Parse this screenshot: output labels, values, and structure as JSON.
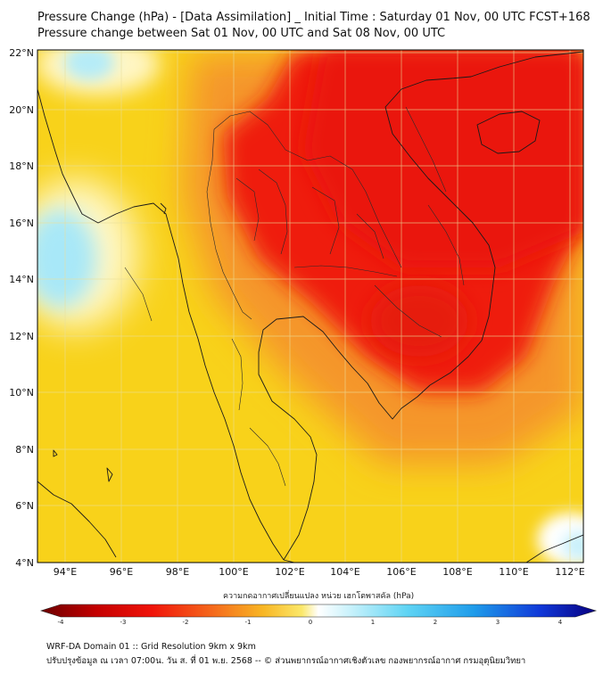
{
  "title": {
    "line1": "Pressure Change (hPa) - [Data Assimilation] _ Initial Time : Saturday 01 Nov, 00 UTC FCST+168",
    "line2": "Pressure change between Sat 01 Nov, 00 UTC and Sat 08 Nov, 00 UTC"
  },
  "map": {
    "lat_labels": [
      "22°N",
      "20°N",
      "18°N",
      "16°N",
      "14°N",
      "12°N",
      "10°N",
      "8°N",
      "6°N",
      "4°N"
    ],
    "lon_labels": [
      "94°E",
      "96°E",
      "98°E",
      "100°E",
      "102°E",
      "104°E",
      "106°E",
      "108°E",
      "110°E",
      "112°E"
    ],
    "lat_range": [
      4,
      22
    ],
    "lon_range": [
      93,
      112.5
    ]
  },
  "colorbar": {
    "label": "ความกดอากาศเปลี่ยนแปลง หน่วย เฮกโตพาสคัล (hPa)",
    "ticks": [
      "-4",
      "-3",
      "-2",
      "-1",
      "0",
      "1",
      "2",
      "3",
      "4"
    ],
    "range": [
      -4,
      4
    ]
  },
  "footer": {
    "line1": "WRF-DA Domain 01 :: Grid Resolution 9km x 9km",
    "line2": "ปรับปรุงข้อมูล ณ เวลา 07:00น. วัน ส. ที่ 01 พ.ย. 2568 -- © ส่วนพยากรณ์อากาศเชิงตัวเลข กองพยากรณ์อากาศ กรมอุตุนิยมวิทยา"
  },
  "colors": {
    "yellow": "#f8d21a",
    "orange": "#f5962a",
    "red": "#ef1d10",
    "white": "#ffffff",
    "light_blue": "#a8e8f8"
  }
}
